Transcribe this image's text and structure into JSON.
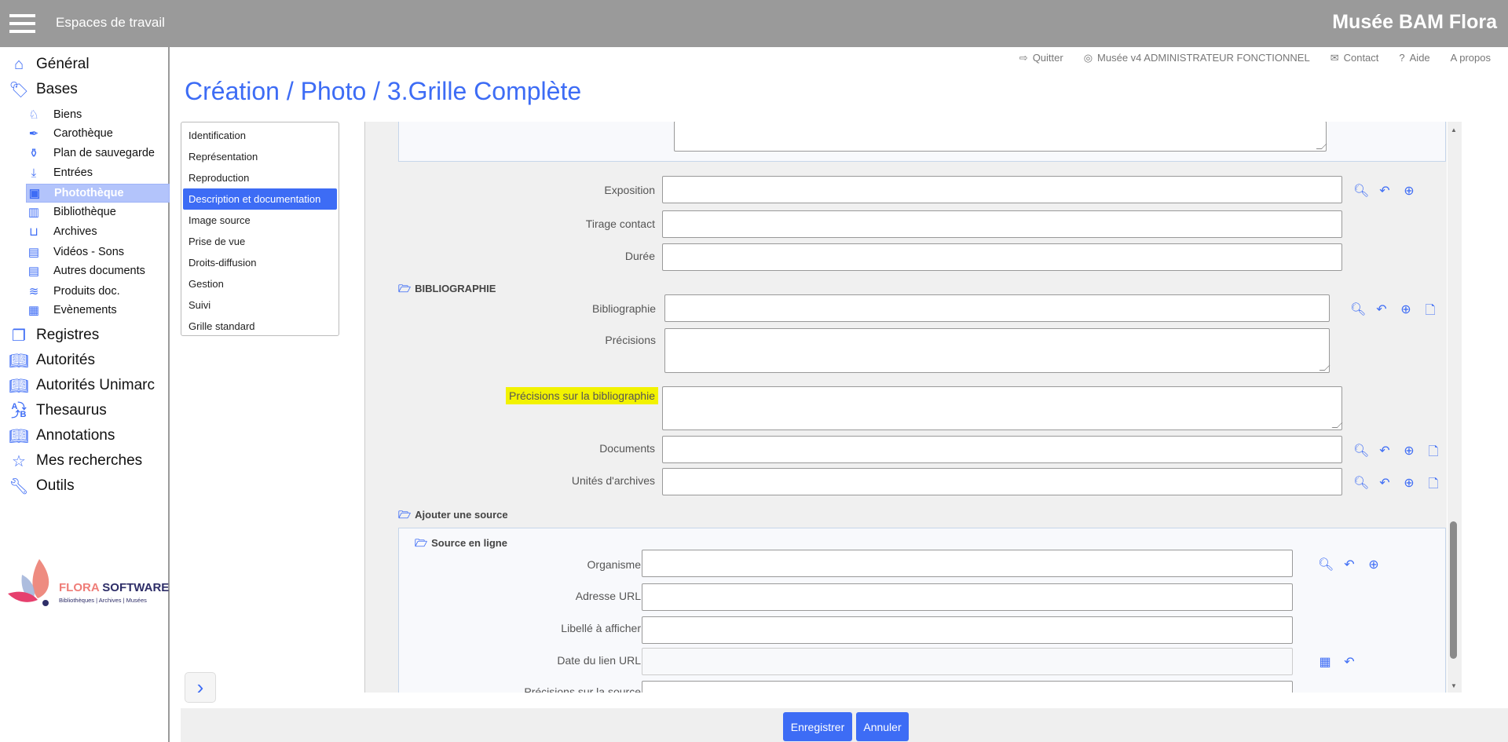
{
  "header": {
    "workspaces": "Espaces de travail",
    "brand": "Musée BAM Flora"
  },
  "toplinks": {
    "quit": "Quitter",
    "user": "Musée v4 ADMINISTRATEUR FONCTIONNEL",
    "contact": "Contact",
    "help": "Aide",
    "about": "A propos"
  },
  "title": "Création / Photo / 3.Grille Complète",
  "sidebar": {
    "general": "Général",
    "bases": "Bases",
    "sub": [
      "Biens",
      "Carothèque",
      "Plan de sauvegarde",
      "Entrées",
      "Photothèque",
      "Bibliothèque",
      "Archives",
      "Vidéos - Sons",
      "Autres documents",
      "Produits doc.",
      "Evènements"
    ],
    "main": [
      "Registres",
      "Autorités",
      "Autorités Unimarc",
      "Thesaurus",
      "Annotations",
      "Mes recherches",
      "Outils"
    ],
    "logo": {
      "name1": "FLORA",
      "name2": "SOFTWARE",
      "tagline": "Bibliothèques | Archives | Musées"
    }
  },
  "tabs": [
    "Identification",
    "Représentation",
    "Reproduction",
    "Description et documentation",
    "Image source",
    "Prise de vue",
    "Droits-diffusion",
    "Gestion",
    "Suivi",
    "Grille standard"
  ],
  "form": {
    "exposition": "Exposition",
    "tirage": "Tirage contact",
    "duree": "Durée",
    "biblio_section": "BIBLIOGRAPHIE",
    "bibliographie": "Bibliographie",
    "precisions": "Précisions",
    "precisions_biblio": "Précisions sur la bibliographie",
    "documents": "Documents",
    "unites": "Unités d'archives",
    "add_source": "Ajouter une source",
    "source_online": "Source en ligne",
    "organisme": "Organisme",
    "url": "Adresse URL",
    "libelle": "Libellé à afficher",
    "date_url": "Date du lien URL",
    "precisions_source": "Précisions sur la source"
  },
  "buttons": {
    "save": "Enregistrer",
    "cancel": "Annuler"
  },
  "colors": {
    "accent": "#3d6cf5",
    "header": "#9a9a9a",
    "highlight": "#f2f200"
  }
}
